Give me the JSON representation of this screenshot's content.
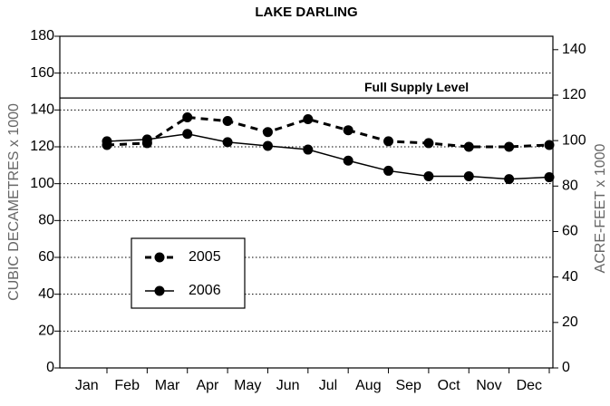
{
  "chart_data": {
    "type": "line",
    "title": "LAKE DARLING",
    "y_label": "CUBIC DECAMETRES x 1000",
    "y2_label": "ACRE-FEET x 1000",
    "categories": [
      "Jan",
      "Feb",
      "Mar",
      "Apr",
      "May",
      "Jun",
      "Jul",
      "Aug",
      "Sep",
      "Oct",
      "Nov",
      "Dec"
    ],
    "series": [
      {
        "name": "2005",
        "color": "#000000",
        "dash": true,
        "values": [
          121,
          122,
          136,
          134,
          128,
          135,
          129,
          123,
          122,
          120,
          120,
          121
        ]
      },
      {
        "name": "2006",
        "color": "#000000",
        "dash": false,
        "values": [
          123,
          124,
          127,
          122.5,
          120.5,
          118.5,
          112.5,
          107,
          104,
          104,
          102.5,
          103.5
        ]
      }
    ],
    "ylim": [
      0,
      180
    ],
    "yticks": [
      0,
      20,
      40,
      60,
      80,
      100,
      120,
      140,
      160,
      180
    ],
    "y2lim": [
      0,
      145.9
    ],
    "y2ticks": [
      0,
      20,
      40,
      60,
      80,
      100,
      120,
      140
    ],
    "reference_line": {
      "label": "Full Supply Level",
      "value": 146.5
    },
    "grid": true
  }
}
